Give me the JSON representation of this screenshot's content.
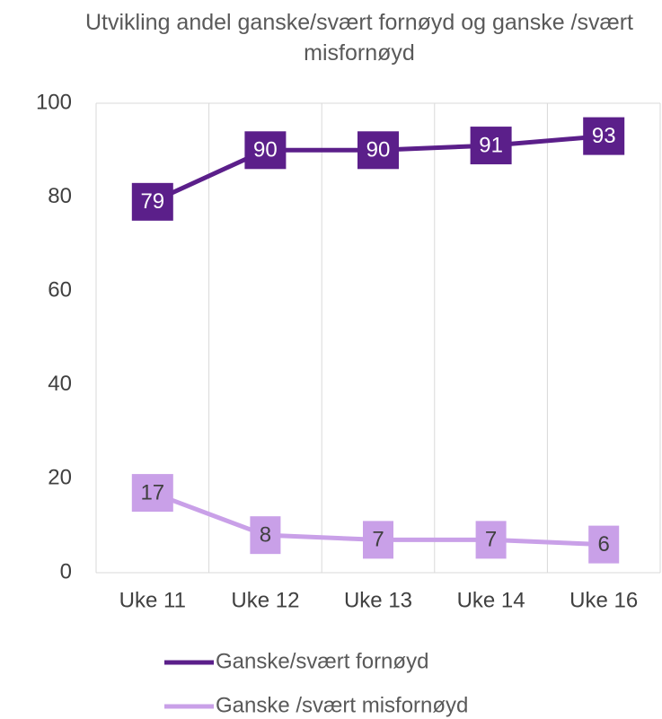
{
  "chart_data": {
    "type": "line",
    "title": "Utvikling andel ganske/svært fornøyd og ganske /svært misfornøyd",
    "categories": [
      "Uke 11",
      "Uke 12",
      "Uke 13",
      "Uke 14",
      "Uke 16"
    ],
    "series": [
      {
        "name": "Ganske/svært fornøyd",
        "color": "#5b1f8a",
        "values": [
          79,
          90,
          90,
          91,
          93
        ]
      },
      {
        "name": "Ganske /svært misfornøyd",
        "color": "#c9a0e8",
        "values": [
          17,
          8,
          7,
          7,
          6
        ]
      }
    ],
    "ylim": [
      0,
      100
    ],
    "yticks": [
      0,
      20,
      40,
      60,
      80,
      100
    ],
    "legend": "bottom"
  }
}
